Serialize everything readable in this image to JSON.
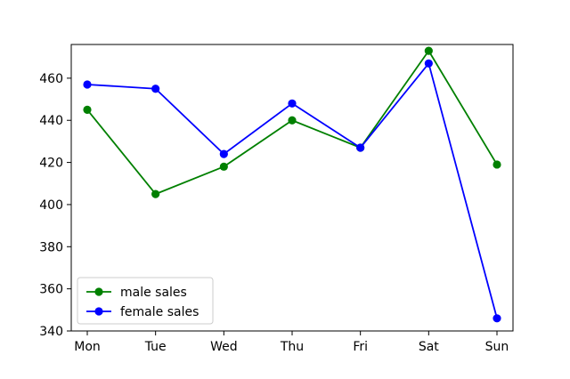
{
  "chart_data": {
    "type": "line",
    "title": "",
    "xlabel": "",
    "ylabel": "",
    "categories": [
      "Mon",
      "Tue",
      "Wed",
      "Thu",
      "Fri",
      "Sat",
      "Sun"
    ],
    "ylim": [
      340,
      476
    ],
    "yticks": [
      340,
      360,
      380,
      400,
      420,
      440,
      460
    ],
    "grid": false,
    "legend_position": "bottom-left",
    "series": [
      {
        "name": "male sales",
        "color": "#008000",
        "marker": "circle",
        "values": [
          445,
          405,
          418,
          440,
          427,
          473,
          419
        ]
      },
      {
        "name": "female sales",
        "color": "#0000ff",
        "marker": "circle",
        "values": [
          457,
          455,
          424,
          448,
          427,
          467,
          346
        ]
      }
    ]
  }
}
